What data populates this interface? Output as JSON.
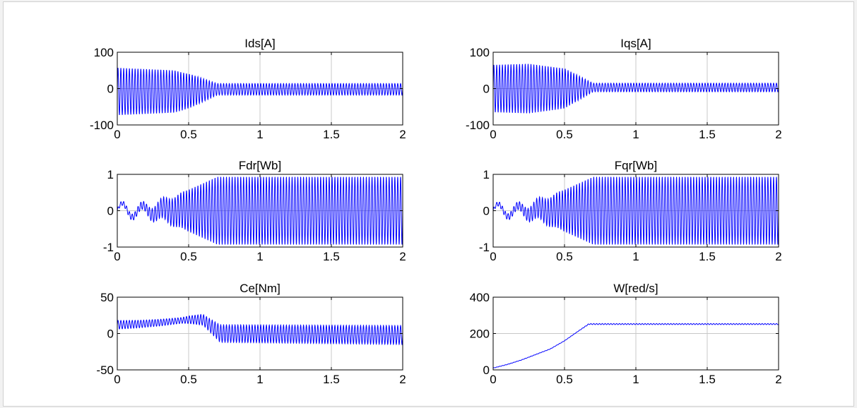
{
  "figure": {
    "background": "#ffffff",
    "grid_color": "#c8c8c8",
    "line_color": "#0000ff"
  },
  "chart_data": [
    {
      "type": "line",
      "title": "Ids[A]",
      "xlabel": "",
      "ylabel": "",
      "xlim": [
        0,
        2
      ],
      "ylim": [
        -100,
        100
      ],
      "grid": true,
      "xticks": [
        0,
        0.5,
        1,
        1.5,
        2
      ],
      "xtick_labels": [
        "0",
        "0.5",
        "1",
        "1.5",
        "2"
      ],
      "yticks": [
        100,
        0,
        -100
      ],
      "ytick_labels": [
        "100",
        "0",
        "-100"
      ],
      "series": [
        {
          "waveform": "oscillation",
          "frequency_hz": 50,
          "center": [
            [
              0,
              -8
            ],
            [
              0.45,
              -8
            ],
            [
              0.7,
              -2
            ],
            [
              2,
              -2
            ]
          ],
          "amplitude": [
            [
              0,
              65
            ],
            [
              0.4,
              58
            ],
            [
              0.52,
              45
            ],
            [
              0.7,
              16
            ],
            [
              2,
              16
            ]
          ]
        }
      ]
    },
    {
      "type": "line",
      "title": "Iqs[A]",
      "xlabel": "",
      "ylabel": "",
      "xlim": [
        0,
        2
      ],
      "ylim": [
        -100,
        100
      ],
      "grid": true,
      "xticks": [
        0,
        0.5,
        1,
        1.5,
        2
      ],
      "xtick_labels": [
        "0",
        "0.5",
        "1",
        "1.5",
        "2"
      ],
      "yticks": [
        100,
        0,
        -100
      ],
      "ytick_labels": [
        "100",
        "0",
        "-100"
      ],
      "series": [
        {
          "waveform": "oscillation",
          "frequency_hz": 50,
          "center": [
            [
              0,
              0
            ],
            [
              0.45,
              0
            ],
            [
              0.7,
              3
            ],
            [
              2,
              3
            ]
          ],
          "amplitude": [
            [
              0,
              65
            ],
            [
              0.25,
              68
            ],
            [
              0.5,
              55
            ],
            [
              0.7,
              12
            ],
            [
              2,
              12
            ]
          ]
        }
      ]
    },
    {
      "type": "line",
      "title": "Fdr[Wb]",
      "xlabel": "",
      "ylabel": "",
      "xlim": [
        0,
        2
      ],
      "ylim": [
        -1,
        1
      ],
      "grid": true,
      "xticks": [
        0,
        0.5,
        1,
        1.5,
        2
      ],
      "xtick_labels": [
        "0",
        "0.5",
        "1",
        "1.5",
        "2"
      ],
      "yticks": [
        1,
        0,
        -1
      ],
      "ytick_labels": [
        "1",
        "0",
        "-1"
      ],
      "series": [
        {
          "waveform": "oscillation",
          "frequency_hz": 50,
          "slow_wave_hz": 7,
          "slow_wave_amplitude": [
            [
              0,
              0.22
            ],
            [
              0.3,
              0.1
            ],
            [
              0.5,
              0
            ],
            [
              2,
              0
            ]
          ],
          "center": [
            [
              0,
              0
            ],
            [
              2,
              0
            ]
          ],
          "amplitude": [
            [
              0,
              0.05
            ],
            [
              0.2,
              0.12
            ],
            [
              0.4,
              0.4
            ],
            [
              0.6,
              0.75
            ],
            [
              0.7,
              0.93
            ],
            [
              2,
              0.93
            ]
          ]
        }
      ]
    },
    {
      "type": "line",
      "title": "Fqr[Wb]",
      "xlabel": "",
      "ylabel": "",
      "xlim": [
        0,
        2
      ],
      "ylim": [
        -1,
        1
      ],
      "grid": true,
      "xticks": [
        0,
        0.5,
        1,
        1.5,
        2
      ],
      "xtick_labels": [
        "0",
        "0.5",
        "1",
        "1.5",
        "2"
      ],
      "yticks": [
        1,
        0,
        -1
      ],
      "ytick_labels": [
        "1",
        "0",
        "-1"
      ],
      "series": [
        {
          "waveform": "oscillation",
          "frequency_hz": 50,
          "slow_wave_hz": 7,
          "slow_wave_amplitude": [
            [
              0,
              0.2
            ],
            [
              0.3,
              0.1
            ],
            [
              0.5,
              0
            ],
            [
              2,
              0
            ]
          ],
          "center": [
            [
              0,
              0
            ],
            [
              2,
              0
            ]
          ],
          "amplitude": [
            [
              0,
              0.05
            ],
            [
              0.2,
              0.12
            ],
            [
              0.4,
              0.4
            ],
            [
              0.6,
              0.75
            ],
            [
              0.7,
              0.93
            ],
            [
              2,
              0.93
            ]
          ]
        }
      ]
    },
    {
      "type": "line",
      "title": "Ce[Nm]",
      "xlabel": "",
      "ylabel": "",
      "xlim": [
        0,
        2
      ],
      "ylim": [
        -50,
        50
      ],
      "grid": true,
      "xticks": [
        0,
        0.5,
        1,
        1.5,
        2
      ],
      "xtick_labels": [
        "0",
        "0.5",
        "1",
        "1.5",
        "2"
      ],
      "yticks": [
        50,
        0,
        -50
      ],
      "ytick_labels": [
        "50",
        "0",
        "-50"
      ],
      "series": [
        {
          "waveform": "oscillation",
          "frequency_hz": 50,
          "center": [
            [
              0,
              12
            ],
            [
              0.15,
              13
            ],
            [
              0.3,
              15
            ],
            [
              0.5,
              19
            ],
            [
              0.6,
              19
            ],
            [
              0.72,
              0
            ],
            [
              2,
              -2
            ]
          ],
          "amplitude": [
            [
              0,
              6
            ],
            [
              0.2,
              5
            ],
            [
              0.45,
              4
            ],
            [
              0.62,
              8
            ],
            [
              0.72,
              12
            ],
            [
              2,
              13
            ]
          ]
        }
      ]
    },
    {
      "type": "line",
      "title": "W[red/s]",
      "xlabel": "",
      "ylabel": "",
      "xlim": [
        0,
        2
      ],
      "ylim": [
        0,
        400
      ],
      "grid": true,
      "xticks": [
        0,
        0.5,
        1,
        1.5,
        2
      ],
      "xtick_labels": [
        "0",
        "0.5",
        "1",
        "1.5",
        "2"
      ],
      "yticks": [
        400,
        200,
        0
      ],
      "ytick_labels": [
        "400",
        "200",
        "0"
      ],
      "series": [
        {
          "waveform": "oscillation",
          "frequency_hz": 50,
          "center": [
            [
              0,
              10
            ],
            [
              0.1,
              30
            ],
            [
              0.2,
              55
            ],
            [
              0.3,
              85
            ],
            [
              0.4,
              115
            ],
            [
              0.5,
              160
            ],
            [
              0.6,
              215
            ],
            [
              0.67,
              252
            ],
            [
              2,
              252
            ]
          ],
          "amplitude": [
            [
              0,
              1
            ],
            [
              0.6,
              1
            ],
            [
              0.7,
              3
            ],
            [
              2,
              3
            ]
          ]
        }
      ]
    }
  ]
}
